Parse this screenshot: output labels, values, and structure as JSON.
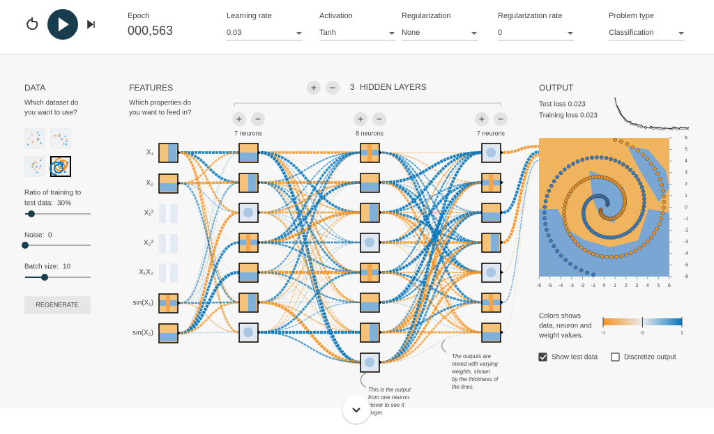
{
  "header": {
    "epoch_label": "Epoch",
    "epoch": "000,563",
    "controls": [
      {
        "label": "Learning rate",
        "value": "0.03"
      },
      {
        "label": "Activation",
        "value": "Tanh"
      },
      {
        "label": "Regularization",
        "value": "None"
      },
      {
        "label": "Regularization rate",
        "value": "0"
      },
      {
        "label": "Problem type",
        "value": "Classification"
      }
    ]
  },
  "data_panel": {
    "title": "DATA",
    "subtitle": [
      "Which dataset do",
      "you want to use?"
    ],
    "ratio_label": [
      "Ratio of training to",
      "test data:"
    ],
    "ratio_value": "30%",
    "noise_label": "Noise:",
    "noise_value": "0",
    "batch_label": "Batch size:",
    "batch_value": "10",
    "regenerate": "REGENERATE"
  },
  "features": {
    "title": "FEATURES",
    "subtitle": [
      "Which properties do",
      "you want to feed in?"
    ],
    "items": [
      {
        "label": "X₁",
        "enabled": true
      },
      {
        "label": "X₂",
        "enabled": true
      },
      {
        "label": "X₁²",
        "enabled": false
      },
      {
        "label": "X₂²",
        "enabled": false
      },
      {
        "label": "X₁X₂",
        "enabled": false
      },
      {
        "label": "sin(X₁)",
        "enabled": true
      },
      {
        "label": "sin(X₂)",
        "enabled": true
      }
    ]
  },
  "network": {
    "plus": "+",
    "minus": "−",
    "hidden_layers_count": "3",
    "hidden_layers_label": "HIDDEN LAYERS",
    "layers": [
      {
        "label": "7 neurons",
        "neurons": 7
      },
      {
        "label": "8 neurons",
        "neurons": 8
      },
      {
        "label": "7 neurons",
        "neurons": 7
      }
    ],
    "note_neuron": [
      "This is the output",
      "from one neuron.",
      "Hover to see it",
      "larger."
    ],
    "note_weights": [
      "The outputs are",
      "mixed with varying",
      "weights, shown",
      "by the thickness of",
      "the lines."
    ]
  },
  "output": {
    "title": "OUTPUT",
    "test_loss": "Test loss 0.023",
    "training_loss": "Training loss 0.023",
    "xticks": [
      -6,
      -5,
      -4,
      -3,
      -2,
      -1,
      0,
      1,
      2,
      3,
      4,
      5,
      6
    ],
    "yticks": [
      6,
      5,
      4,
      3,
      2,
      1,
      0,
      -1,
      -2,
      -3,
      -4,
      -5,
      -6
    ],
    "colorbar_text": [
      "Colors shows",
      "data, neuron and",
      "weight values."
    ],
    "colorbar_ticks": [
      "-1",
      "0",
      "1"
    ],
    "show_test_data": "Show test data",
    "show_test_data_checked": true,
    "discretize": "Discretize output",
    "discretize_checked": false
  }
}
